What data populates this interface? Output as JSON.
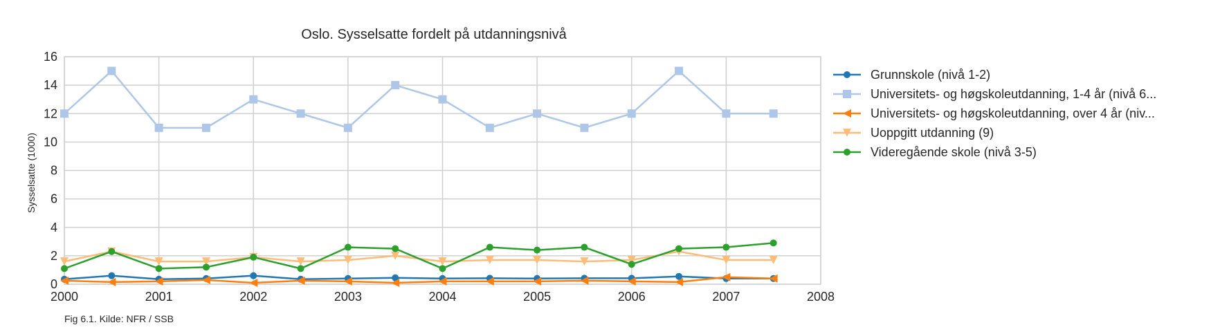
{
  "chart_data": {
    "type": "line",
    "title": "Oslo. Sysselsatte fordelt på utdanningsnivå",
    "xlabel": "",
    "ylabel": "Sysselsatte (1000)",
    "caption": "Fig 6.1. Kilde: NFR / SSB",
    "xlim": [
      2000,
      2008
    ],
    "ylim": [
      0,
      16
    ],
    "x_ticks": [
      "2000",
      "2001",
      "2002",
      "2003",
      "2004",
      "2005",
      "2006",
      "2007",
      "2008"
    ],
    "y_ticks": [
      "0",
      "2",
      "4",
      "6",
      "8",
      "10",
      "12",
      "14",
      "16"
    ],
    "grid": true,
    "legend_position": "right",
    "x": [
      2000,
      2000.5,
      2001,
      2001.5,
      2002,
      2002.5,
      2003,
      2003.5,
      2004,
      2004.5,
      2005,
      2005.5,
      2006,
      2006.5,
      2007,
      2007.5
    ],
    "series": [
      {
        "name": "Grunnskole (nivå 1-2)",
        "color": "#1f77b4",
        "marker": "circle",
        "values": [
          0.35,
          0.6,
          0.35,
          0.4,
          0.6,
          0.35,
          0.4,
          0.45,
          0.4,
          0.42,
          0.4,
          0.42,
          0.42,
          0.55,
          0.4,
          0.4
        ]
      },
      {
        "name": "Universitets- og høgskoleutdanning, 1-4 år (nivå 6...",
        "color": "#aec7e8",
        "marker": "square",
        "values": [
          12,
          15,
          11,
          11,
          13,
          12,
          11,
          14,
          13,
          11,
          12,
          11,
          12,
          15,
          12,
          12
        ]
      },
      {
        "name": "Universitets- og høgskoleutdanning, over 4 år (niv...",
        "color": "#ff7f0e",
        "marker": "triangle-left",
        "values": [
          0.25,
          0.15,
          0.2,
          0.3,
          0.1,
          0.25,
          0.2,
          0.1,
          0.2,
          0.2,
          0.2,
          0.25,
          0.2,
          0.15,
          0.5,
          0.4
        ]
      },
      {
        "name": "Uoppgitt utdanning (9)",
        "color": "#ffbb78",
        "marker": "triangle-down",
        "values": [
          1.6,
          2.3,
          1.6,
          1.6,
          1.9,
          1.6,
          1.7,
          2.0,
          1.6,
          1.7,
          1.7,
          1.6,
          1.7,
          2.3,
          1.7,
          1.7
        ]
      },
      {
        "name": "Videregående skole (nivå 3-5)",
        "color": "#2ca02c",
        "marker": "circle",
        "values": [
          1.1,
          2.3,
          1.1,
          1.2,
          1.9,
          1.1,
          2.6,
          2.5,
          1.1,
          2.6,
          2.4,
          2.6,
          1.4,
          2.5,
          2.6,
          2.9
        ]
      }
    ]
  }
}
